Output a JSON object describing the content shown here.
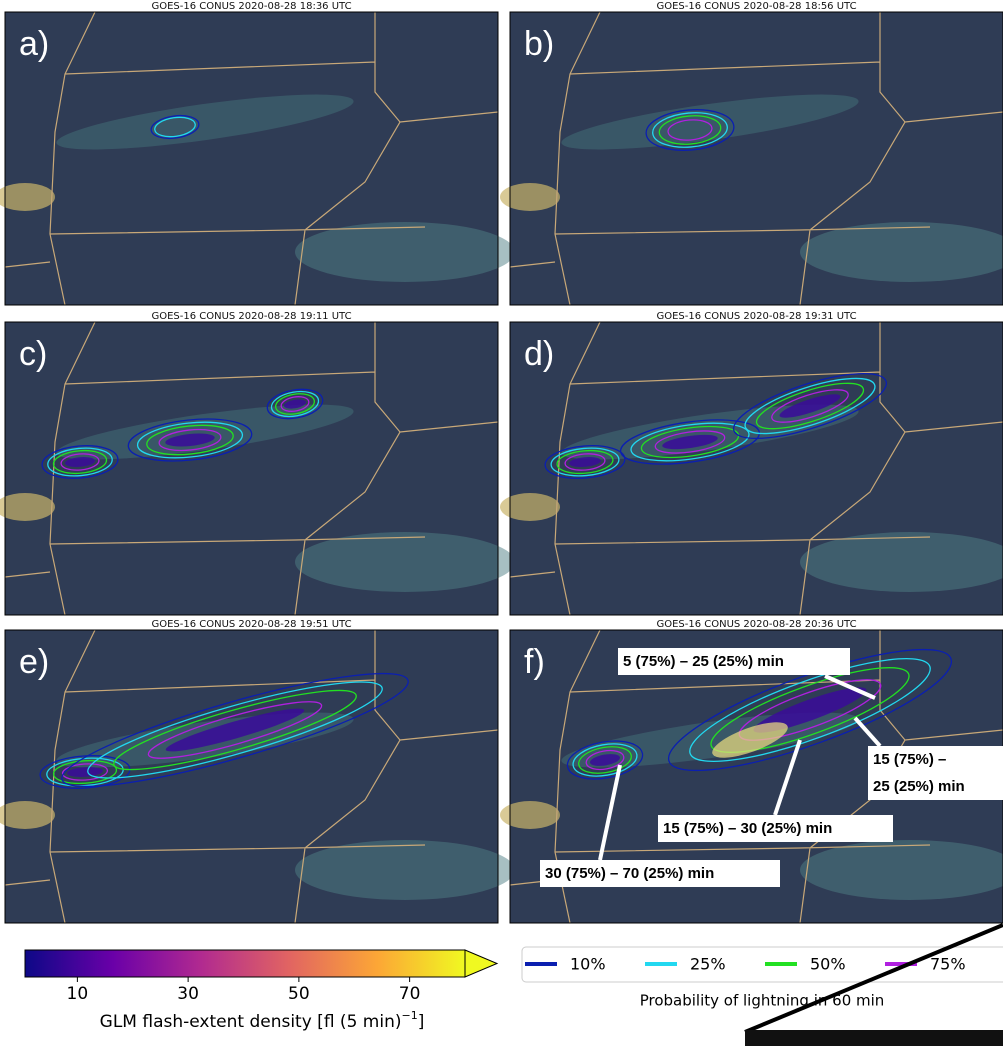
{
  "panels": [
    {
      "letter": "a)",
      "title": "GOES-16 CONUS 2020-08-28 18:36 UTC"
    },
    {
      "letter": "b)",
      "title": "GOES-16 CONUS 2020-08-28 18:56 UTC"
    },
    {
      "letter": "c)",
      "title": "GOES-16 CONUS 2020-08-28 19:11 UTC"
    },
    {
      "letter": "d)",
      "title": "GOES-16 CONUS 2020-08-28 19:31 UTC"
    },
    {
      "letter": "e)",
      "title": "GOES-16 CONUS 2020-08-28 19:51 UTC"
    },
    {
      "letter": "f)",
      "title": "GOES-16 CONUS 2020-08-28 20:36 UTC"
    }
  ],
  "annotations": [
    {
      "lines": [
        "5 (75%) – 25 (25%) min"
      ]
    },
    {
      "lines": [
        "15 (75%) –",
        "25 (25%) min"
      ]
    },
    {
      "lines": [
        "15 (75%) – 30 (25%) min"
      ]
    },
    {
      "lines": [
        "30 (75%) – 70 (25%) min"
      ]
    }
  ],
  "colorbar": {
    "lim": [
      0,
      80
    ],
    "ticks": [
      10,
      30,
      50,
      70
    ],
    "colors": [
      "#0d0887",
      "#6a00a8",
      "#b12a90",
      "#e16462",
      "#fca636",
      "#f0f921"
    ],
    "label": "GLM flash-extent density [fl (5 min)",
    "label_superscript": "−1",
    "label_end": "]"
  },
  "legend": {
    "entries": [
      {
        "label": "10%",
        "color": "#0b1fb0"
      },
      {
        "label": "25%",
        "color": "#22d8f0"
      },
      {
        "label": "50%",
        "color": "#22e022"
      },
      {
        "label": "75%",
        "color": "#b020e0"
      }
    ],
    "title": "Probability of lightning in 60 min"
  }
}
